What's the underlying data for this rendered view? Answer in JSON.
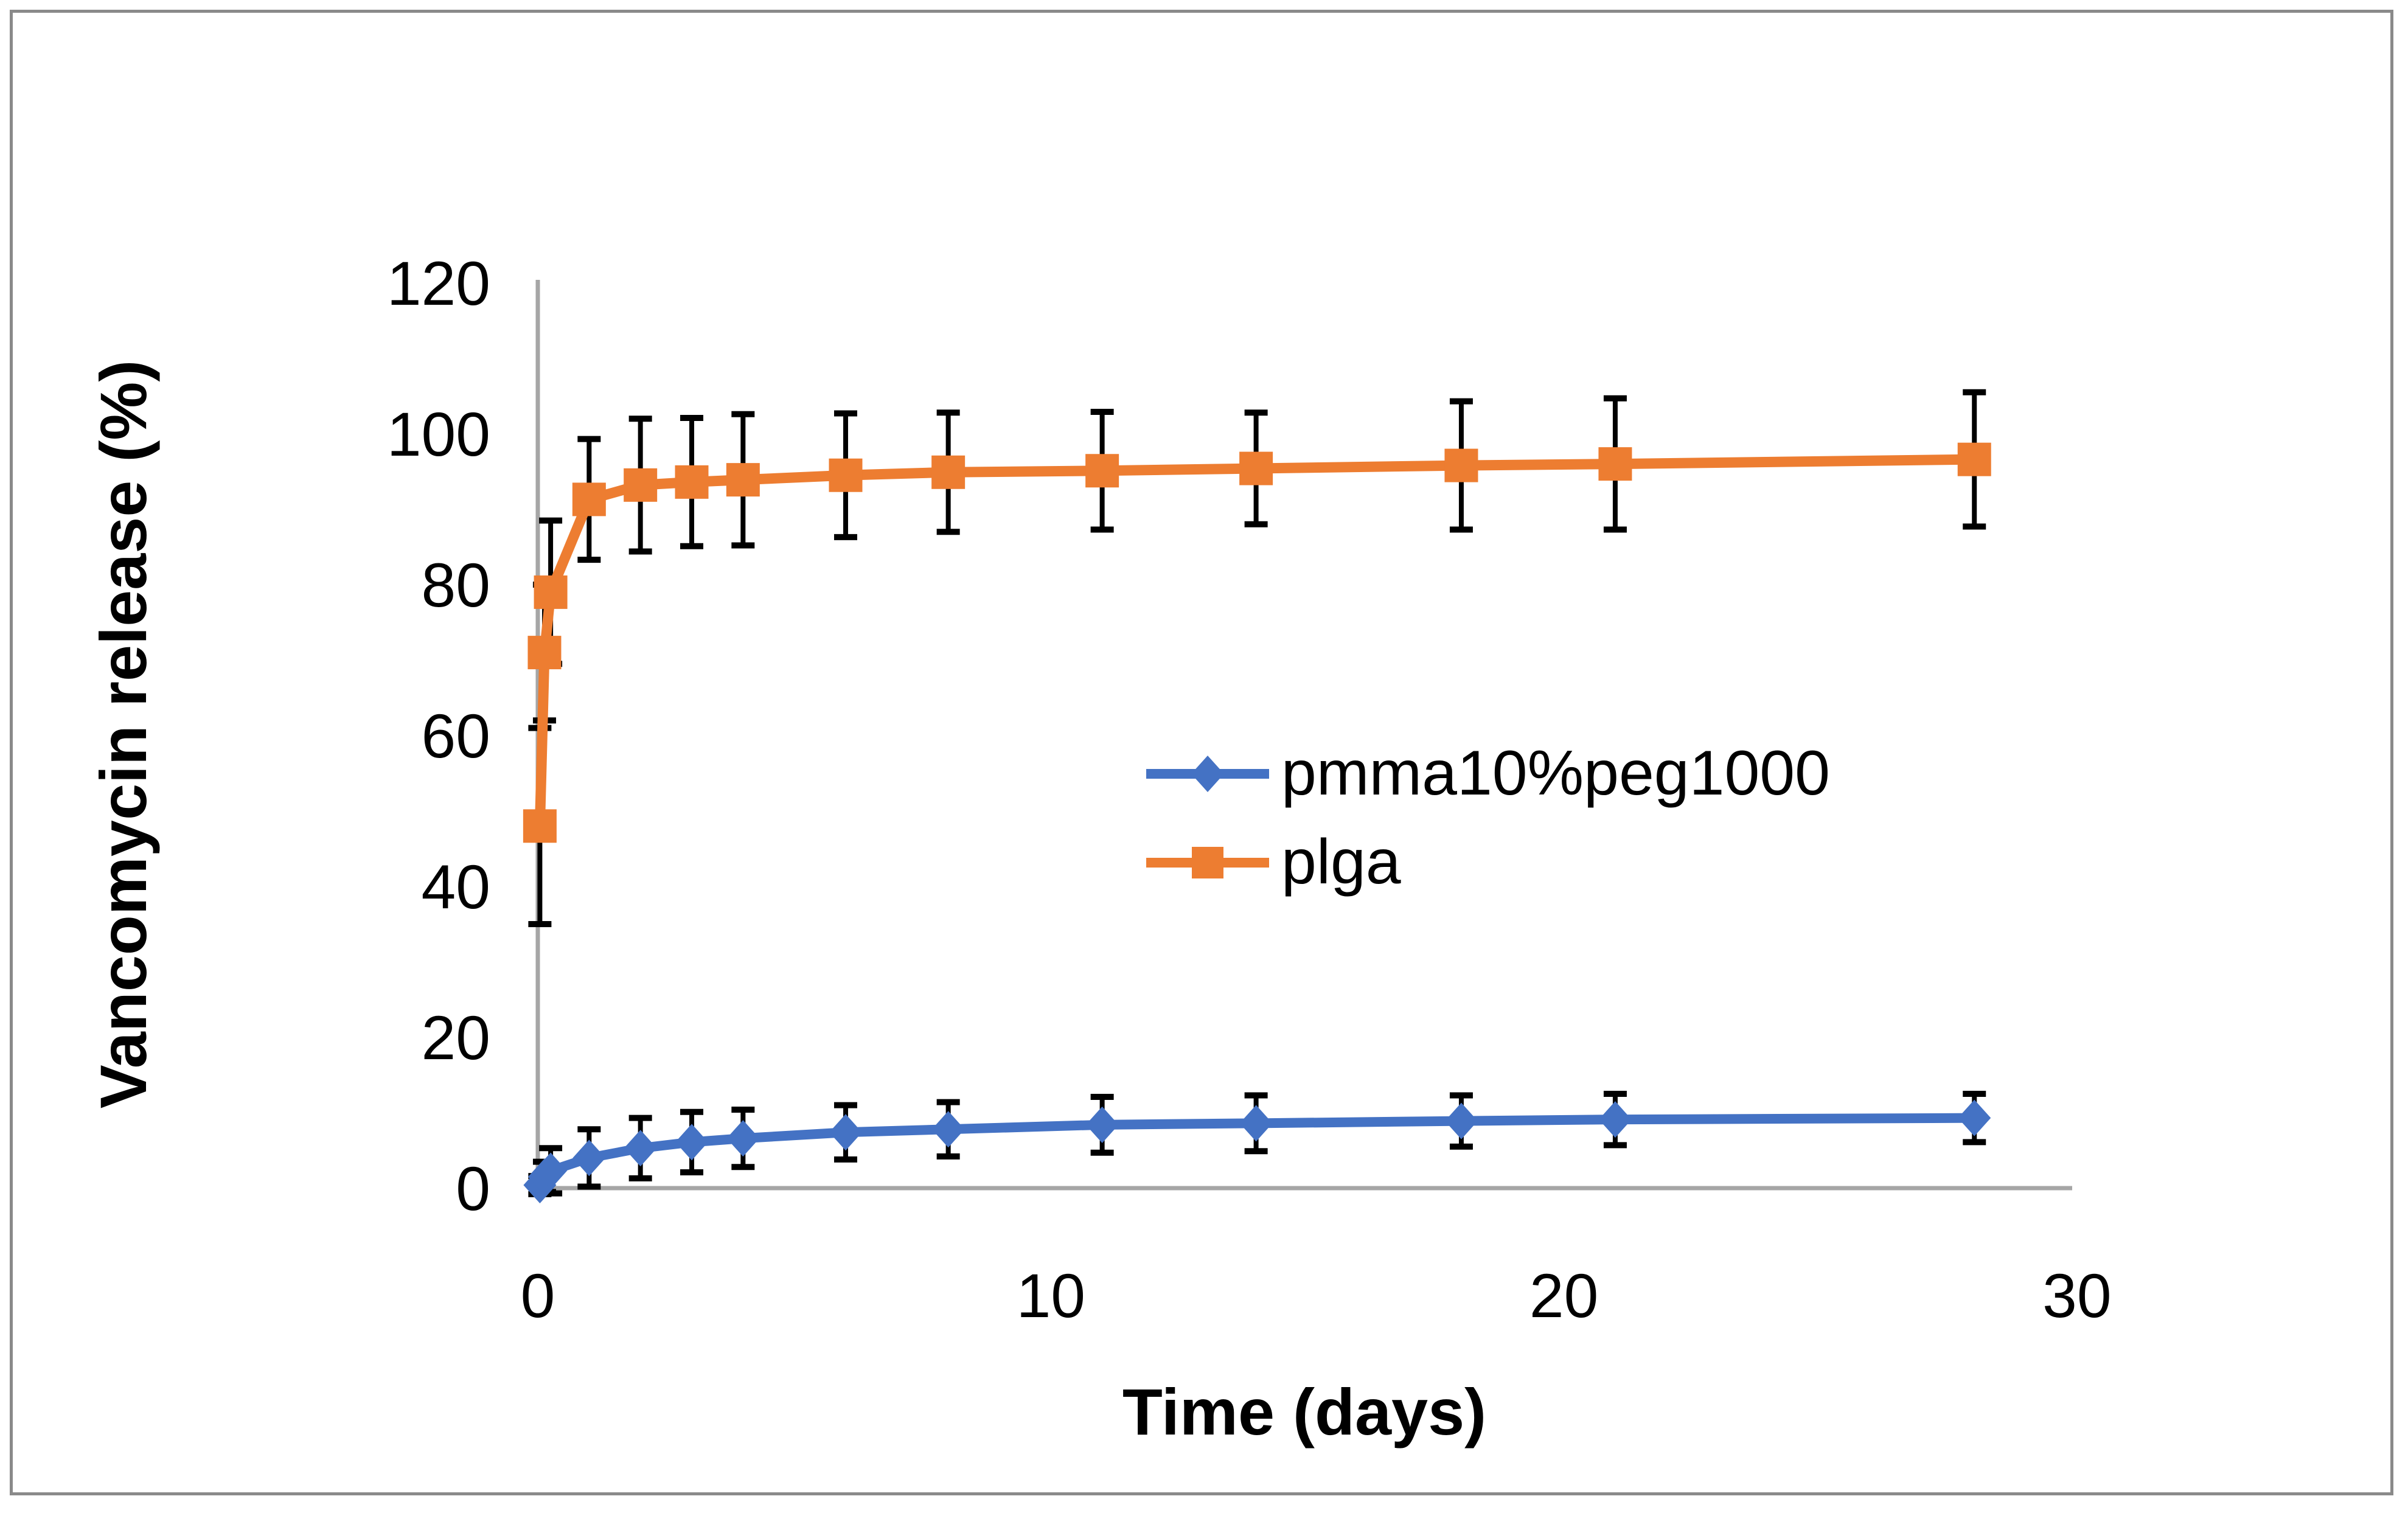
{
  "figure": {
    "background": "#ffffff",
    "border_color": "#8a8a8a"
  },
  "chart_data": {
    "type": "line",
    "title": "",
    "xlabel": "Time (days)",
    "ylabel": "Vancomycin release (%)",
    "xlim": [
      0,
      30
    ],
    "ylim": [
      0,
      120
    ],
    "x_ticks": [
      "0",
      "10",
      "20",
      "30"
    ],
    "y_ticks": [
      "0",
      "20",
      "40",
      "60",
      "80",
      "100",
      "120"
    ],
    "grid": false,
    "legend_position": "center-right",
    "axis_color": "#A6A6A6",
    "error_bar_color": "#000000",
    "text_color": "#000000",
    "x": [
      0.04,
      0.13,
      0.25,
      1,
      2,
      3,
      4,
      6,
      8,
      11,
      14,
      18,
      21,
      28
    ],
    "series": [
      {
        "name": "pmma10%peg1000",
        "color": "#4472C4",
        "marker": "diamond",
        "values": [
          0.4,
          1.5,
          2.3,
          4.0,
          5.3,
          6.1,
          6.6,
          7.4,
          7.8,
          8.4,
          8.6,
          8.9,
          9.1,
          9.3
        ],
        "error": [
          1.2,
          2.0,
          3.0,
          3.8,
          4.0,
          4.0,
          3.8,
          3.6,
          3.6,
          3.7,
          3.7,
          3.4,
          3.4,
          3.2
        ]
      },
      {
        "name": "plga",
        "color": "#ED7D31",
        "marker": "square",
        "values": [
          48,
          71,
          79,
          91.3,
          93.2,
          93.6,
          93.9,
          94.5,
          94.9,
          95.1,
          95.4,
          95.8,
          96.0,
          96.6
        ],
        "error": [
          13,
          9,
          9.5,
          8,
          8.8,
          8.5,
          8.7,
          8.2,
          7.9,
          7.8,
          7.4,
          8.5,
          8.7,
          8.9
        ]
      }
    ]
  }
}
